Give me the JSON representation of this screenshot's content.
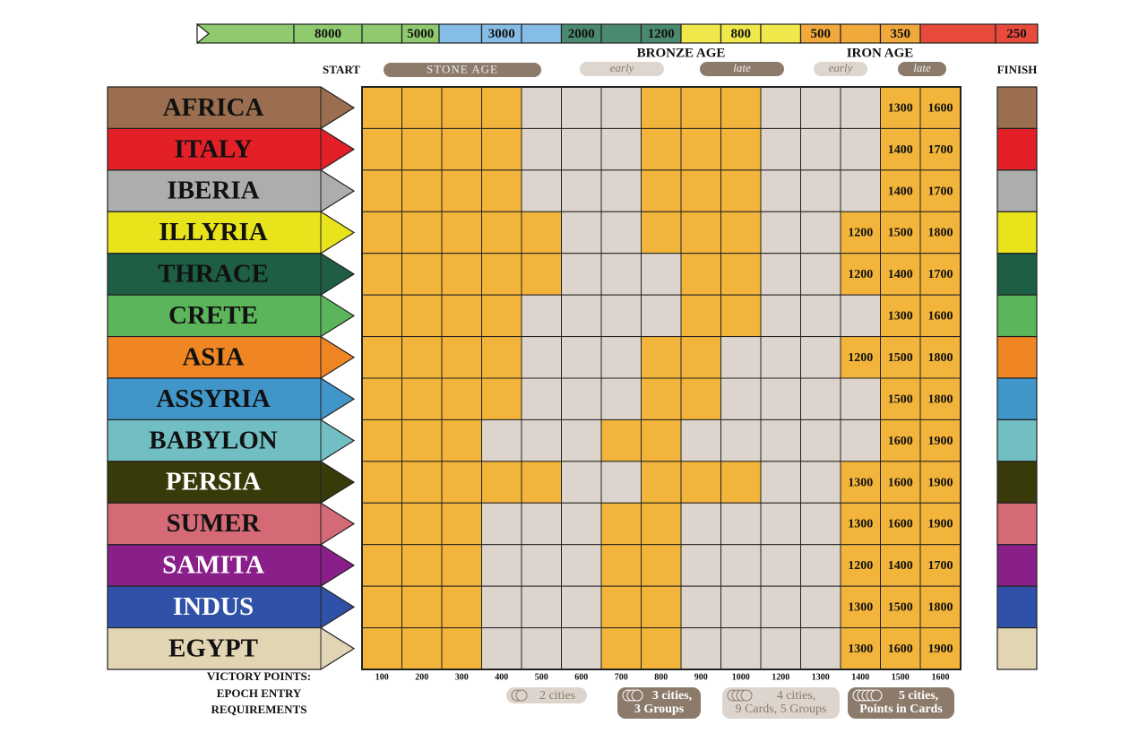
{
  "timeline": [
    8000,
    5000,
    3000,
    2000,
    1200,
    800,
    500,
    350,
    250
  ],
  "header": {
    "start": "START",
    "finish": "FINISH",
    "stone_age": "STONE AGE",
    "bronze_age": "BRONZE AGE",
    "bronze_early": "early",
    "bronze_late": "late",
    "iron_age": "IRON AGE",
    "iron_early": "early",
    "iron_late": "late"
  },
  "rows": [
    {
      "name": "AFRICA",
      "color": "#9b6e4f",
      "text_color": "#111",
      "points": [
        1300,
        1600
      ]
    },
    {
      "name": "ITALY",
      "color": "#e32027",
      "text_color": "#111",
      "points": [
        1400,
        1700
      ]
    },
    {
      "name": "IBERIA",
      "color": "#adadad",
      "text_color": "#111",
      "points": [
        1400,
        1700
      ]
    },
    {
      "name": "ILLYRIA",
      "color": "#e9e31b",
      "text_color": "#111",
      "points": [
        1200,
        1500,
        1800
      ]
    },
    {
      "name": "THRACE",
      "color": "#1d5e45",
      "text_color": "#111",
      "points": [
        1200,
        1400,
        1700
      ]
    },
    {
      "name": "CRETE",
      "color": "#5bb55a",
      "text_color": "#111",
      "points": [
        1300,
        1600
      ]
    },
    {
      "name": "ASIA",
      "color": "#f08623",
      "text_color": "#111",
      "points": [
        1200,
        1500,
        1800
      ]
    },
    {
      "name": "ASSYRIA",
      "color": "#4196c9",
      "text_color": "#111",
      "points": [
        1500,
        1800
      ]
    },
    {
      "name": "BABYLON",
      "color": "#72bfc3",
      "text_color": "#111",
      "points": [
        1600,
        1900
      ]
    },
    {
      "name": "PERSIA",
      "color": "#383a0a",
      "text_color": "#fff",
      "points": [
        1300,
        1600,
        1900
      ]
    },
    {
      "name": "SUMER",
      "color": "#d46a76",
      "text_color": "#111",
      "points": [
        1300,
        1600,
        1900
      ]
    },
    {
      "name": "SAMITA",
      "color": "#8a1f8a",
      "text_color": "#fff",
      "points": [
        1200,
        1400,
        1700
      ]
    },
    {
      "name": "INDUS",
      "color": "#2f51a8",
      "text_color": "#fff",
      "points": [
        1300,
        1500,
        1800
      ]
    },
    {
      "name": "EGYPT",
      "color": "#e2d5b4",
      "text_color": "#111",
      "points": [
        1300,
        1600,
        1900
      ]
    }
  ],
  "footer": {
    "victory_points": "VICTORY POINTS:",
    "epoch_entry": "EPOCH ENTRY",
    "requirements": "REQUIREMENTS",
    "column_points": [
      100,
      200,
      300,
      400,
      500,
      600,
      700,
      800,
      900,
      1000,
      1200,
      1300,
      1400,
      1500,
      1600
    ],
    "entry_requirements": [
      [
        "2 cities"
      ],
      [
        "3 cities,",
        "3 Groups"
      ],
      [
        "4 cities,",
        "9 Cards, 5 Groups"
      ],
      [
        "5 cities,",
        "Points in Cards"
      ]
    ]
  }
}
